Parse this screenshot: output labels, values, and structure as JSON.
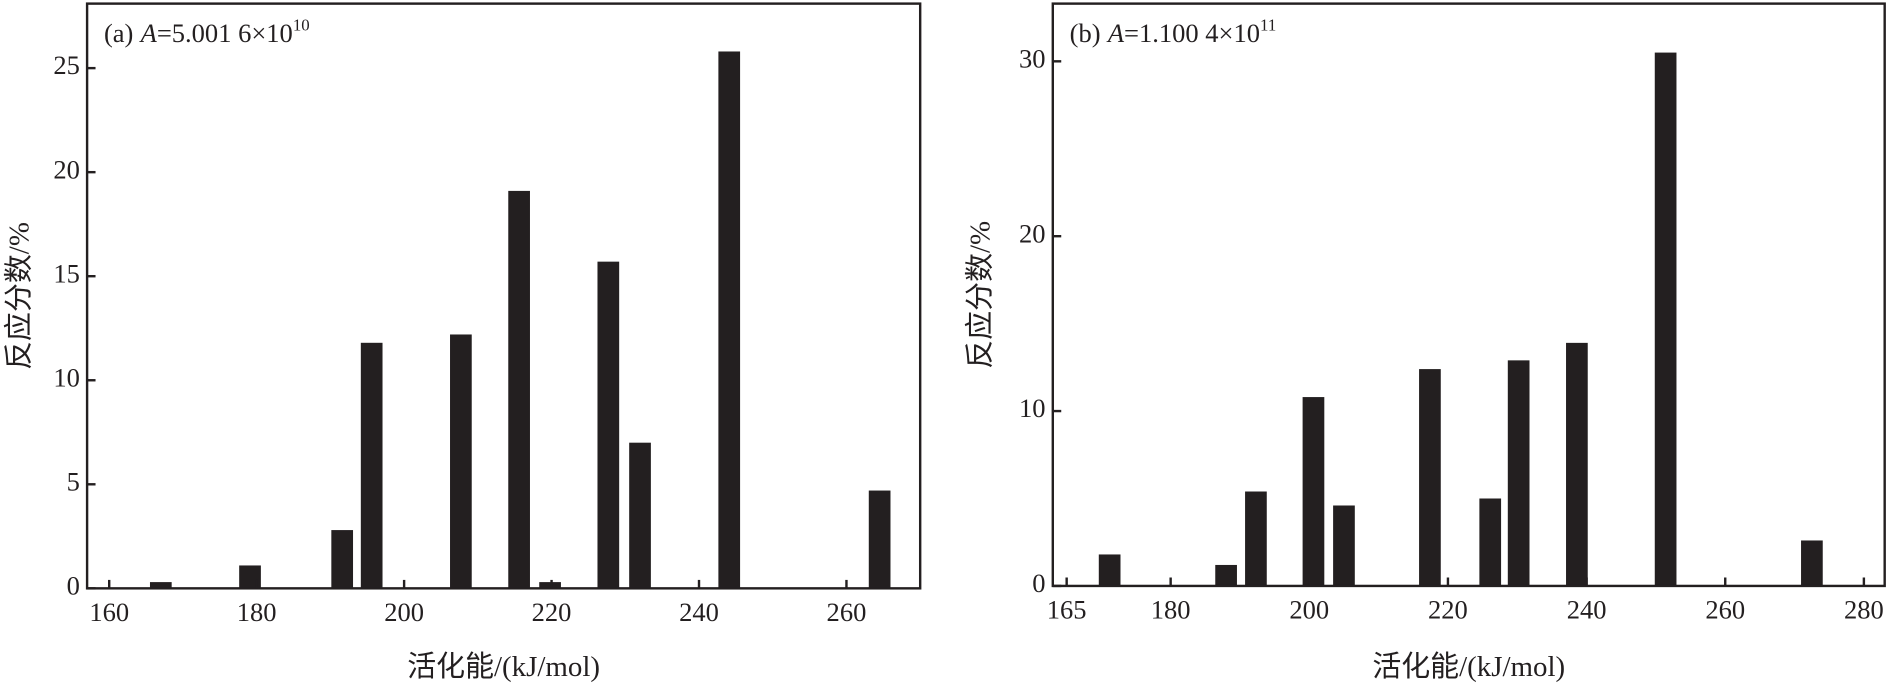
{
  "chart_data": [
    {
      "type": "bar",
      "title": {
        "label": "(a)",
        "variable": "A",
        "text": "=5.001 6×10",
        "sup": "10"
      },
      "x_label": "活化能/(kJ/mol)",
      "y_label": "反应分数/%",
      "x": [
        167,
        179.1,
        191.6,
        195.6,
        207.7,
        215.6,
        219.8,
        227.7,
        232,
        244.1,
        264.5
      ],
      "values": [
        0.3,
        1.1,
        2.8,
        11.8,
        12.2,
        19.1,
        0.3,
        15.7,
        7.0,
        25.8,
        4.7
      ],
      "color": "#231f20",
      "xlim": [
        157,
        270
      ],
      "xticks": [
        160,
        180,
        200,
        220,
        240,
        260
      ],
      "ylim": [
        0,
        28.1
      ],
      "yticks": [
        0,
        5,
        10,
        15,
        20,
        25
      ]
    },
    {
      "type": "bar",
      "title": {
        "label": "(b)",
        "variable": "A",
        "text": "=1.100 4×10",
        "sup": "11"
      },
      "x_label": "活化能/(kJ/mol)",
      "y_label": "反应分数/%",
      "x": [
        171.2,
        188,
        192.3,
        200.6,
        205,
        217.4,
        226.1,
        230.2,
        238.6,
        251.4,
        272.5
      ],
      "values": [
        1.8,
        1.2,
        5.4,
        10.8,
        4.6,
        12.4,
        5.0,
        12.9,
        13.9,
        30.5,
        2.6
      ],
      "color": "#231f20",
      "xlim": [
        163,
        283
      ],
      "xticks": [
        165,
        180,
        200,
        220,
        240,
        260,
        280
      ],
      "ylim": [
        0,
        33.3
      ],
      "yticks": [
        0,
        10,
        20,
        30
      ]
    }
  ]
}
